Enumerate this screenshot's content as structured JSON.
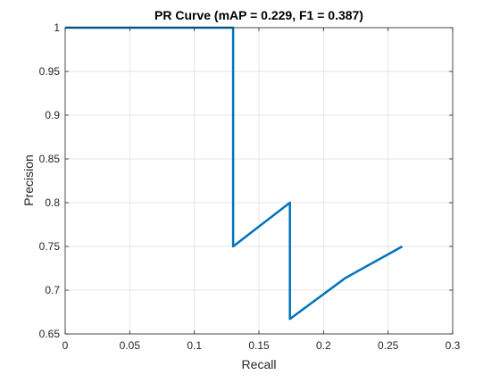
{
  "chart_data": {
    "type": "line",
    "title": "PR Curve (mAP = 0.229, F1 = 0.387)",
    "xlabel": "Recall",
    "ylabel": "Precision",
    "xlim": [
      0,
      0.3
    ],
    "ylim": [
      0.65,
      1
    ],
    "xticks": [
      0,
      0.05,
      0.1,
      0.15,
      0.2,
      0.25,
      0.3
    ],
    "xtick_labels": [
      "0",
      "0.05",
      "0.1",
      "0.15",
      "0.2",
      "0.25",
      "0.3"
    ],
    "yticks": [
      0.65,
      0.7,
      0.75,
      0.8,
      0.85,
      0.9,
      0.95,
      1
    ],
    "ytick_labels": [
      "0.65",
      "0.7",
      "0.75",
      "0.8",
      "0.85",
      "0.9",
      "0.95",
      "1"
    ],
    "grid": true,
    "series": [
      {
        "color": "#0072BD",
        "x": [
          0,
          0.13,
          0.13,
          0.174,
          0.174,
          0.217,
          0.261
        ],
        "y": [
          1,
          1,
          0.75,
          0.8,
          0.667,
          0.714,
          0.75
        ]
      }
    ]
  }
}
